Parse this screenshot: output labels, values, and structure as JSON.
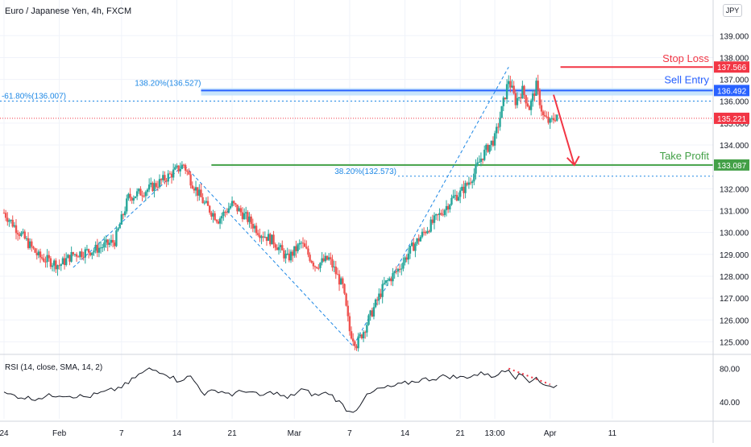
{
  "header": {
    "symbol_title": "Euro / Japanese Yen, 4h, FXCM",
    "currency": "JPY"
  },
  "rsi": {
    "title": "RSI (14, close, SMA, 14, 2)",
    "ticks": [
      "80.00",
      "40.00"
    ],
    "tick_values": [
      80,
      40
    ],
    "ylim": [
      20,
      92
    ]
  },
  "colors": {
    "bull": "#26a69a",
    "bear": "#ef5350",
    "stop": "#f23645",
    "entry": "#2962ff",
    "entry_zone": "#bbdefb",
    "take_profit": "#43a047",
    "fib": "#1e88e5",
    "last_price": "#f23645"
  },
  "annotations": {
    "stop_loss": {
      "label": "Stop Loss",
      "price_label": "137.566",
      "price": 137.566
    },
    "sell_entry": {
      "label": "Sell Entry",
      "price_label": "136.492",
      "price": 136.492
    },
    "take_profit": {
      "label": "Take Profit",
      "price_label": "133.087",
      "price": 133.087
    },
    "last_price": {
      "price_label": "135.221",
      "price": 135.221
    },
    "fib_ext": {
      "label": "138.20%(136.527)",
      "price": 136.527
    },
    "fib_neg": {
      "label": "-61.80%(136.007)",
      "price": 136.007
    },
    "fib_38": {
      "label": "38.20%(132.573)",
      "price": 132.573
    }
  },
  "chart_data": {
    "type": "candlestick",
    "title": "Euro / Japanese Yen, 4h, FXCM",
    "xlabel": "",
    "ylabel": "",
    "ylim": [
      124.5,
      139.6
    ],
    "y_ticks": [
      "125.000",
      "126.000",
      "127.000",
      "128.000",
      "129.000",
      "130.000",
      "131.000",
      "132.000",
      "133.000",
      "134.000",
      "135.000",
      "136.000",
      "137.000",
      "138.000",
      "139.000"
    ],
    "y_tick_values": [
      125,
      126,
      127,
      128,
      129,
      130,
      131,
      132,
      133,
      134,
      135,
      136,
      137,
      138,
      139
    ],
    "x_ticks": [
      "24",
      "Feb",
      "7",
      "14",
      "21",
      "Mar",
      "7",
      "14",
      "21",
      "13:00",
      "Apr",
      "11"
    ],
    "x_tick_positions": [
      0,
      8,
      17,
      25,
      33,
      42,
      50,
      58,
      66,
      71,
      79,
      88
    ],
    "x_span": 102,
    "price_path": [
      [
        0,
        130.9
      ],
      [
        3,
        129.7
      ],
      [
        5,
        128.9
      ],
      [
        8,
        128.5
      ],
      [
        10,
        129.0
      ],
      [
        13,
        129.2
      ],
      [
        16,
        129.6
      ],
      [
        18,
        131.6
      ],
      [
        21,
        132.0
      ],
      [
        23,
        132.4
      ],
      [
        26,
        133.1
      ],
      [
        27,
        132.4
      ],
      [
        29,
        131.3
      ],
      [
        31,
        130.6
      ],
      [
        33,
        131.3
      ],
      [
        35,
        130.7
      ],
      [
        37,
        130.0
      ],
      [
        39,
        129.6
      ],
      [
        41,
        128.8
      ],
      [
        43,
        129.5
      ],
      [
        45,
        128.5
      ],
      [
        47,
        128.8
      ],
      [
        49,
        127.5
      ],
      [
        50,
        125.5
      ],
      [
        51,
        124.9
      ],
      [
        52,
        125.5
      ],
      [
        54,
        126.9
      ],
      [
        55,
        127.6
      ],
      [
        57,
        128.3
      ],
      [
        59,
        129.3
      ],
      [
        61,
        130.1
      ],
      [
        63,
        130.8
      ],
      [
        65,
        131.6
      ],
      [
        66,
        131.8
      ],
      [
        67,
        132.2
      ],
      [
        68,
        132.7
      ],
      [
        69,
        133.4
      ],
      [
        70,
        133.9
      ],
      [
        71,
        134.3
      ],
      [
        72,
        135.6
      ],
      [
        73,
        137.0
      ],
      [
        74,
        136.0
      ],
      [
        75,
        136.5
      ],
      [
        76,
        135.7
      ],
      [
        77,
        136.7
      ],
      [
        78,
        135.3
      ],
      [
        79,
        135.0
      ],
      [
        80,
        135.4
      ]
    ],
    "zigzag": [
      [
        10,
        128.4
      ],
      [
        26,
        133.1
      ],
      [
        50.5,
        124.8
      ],
      [
        73,
        137.566
      ]
    ],
    "rsi_path": [
      [
        0,
        50
      ],
      [
        4,
        44
      ],
      [
        8,
        49
      ],
      [
        12,
        46
      ],
      [
        16,
        55
      ],
      [
        18,
        62
      ],
      [
        19,
        70
      ],
      [
        21,
        79
      ],
      [
        23,
        76
      ],
      [
        25,
        66
      ],
      [
        27,
        70
      ],
      [
        29,
        50
      ],
      [
        31,
        54
      ],
      [
        33,
        49
      ],
      [
        35,
        54
      ],
      [
        37,
        47
      ],
      [
        39,
        52
      ],
      [
        41,
        44
      ],
      [
        43,
        55
      ],
      [
        45,
        48
      ],
      [
        47,
        51
      ],
      [
        49,
        36
      ],
      [
        50,
        28
      ],
      [
        51,
        32
      ],
      [
        52,
        44
      ],
      [
        54,
        55
      ],
      [
        56,
        58
      ],
      [
        58,
        62
      ],
      [
        60,
        66
      ],
      [
        62,
        68
      ],
      [
        64,
        71
      ],
      [
        66,
        69
      ],
      [
        68,
        72
      ],
      [
        70,
        75
      ],
      [
        71,
        68
      ],
      [
        72,
        78
      ],
      [
        73,
        80
      ],
      [
        74,
        70
      ],
      [
        75,
        72
      ],
      [
        76,
        65
      ],
      [
        77,
        70
      ],
      [
        78,
        60
      ],
      [
        79,
        58
      ],
      [
        80,
        61
      ]
    ],
    "rsi_divergence": [
      [
        73,
        80
      ],
      [
        79,
        61
      ]
    ]
  }
}
